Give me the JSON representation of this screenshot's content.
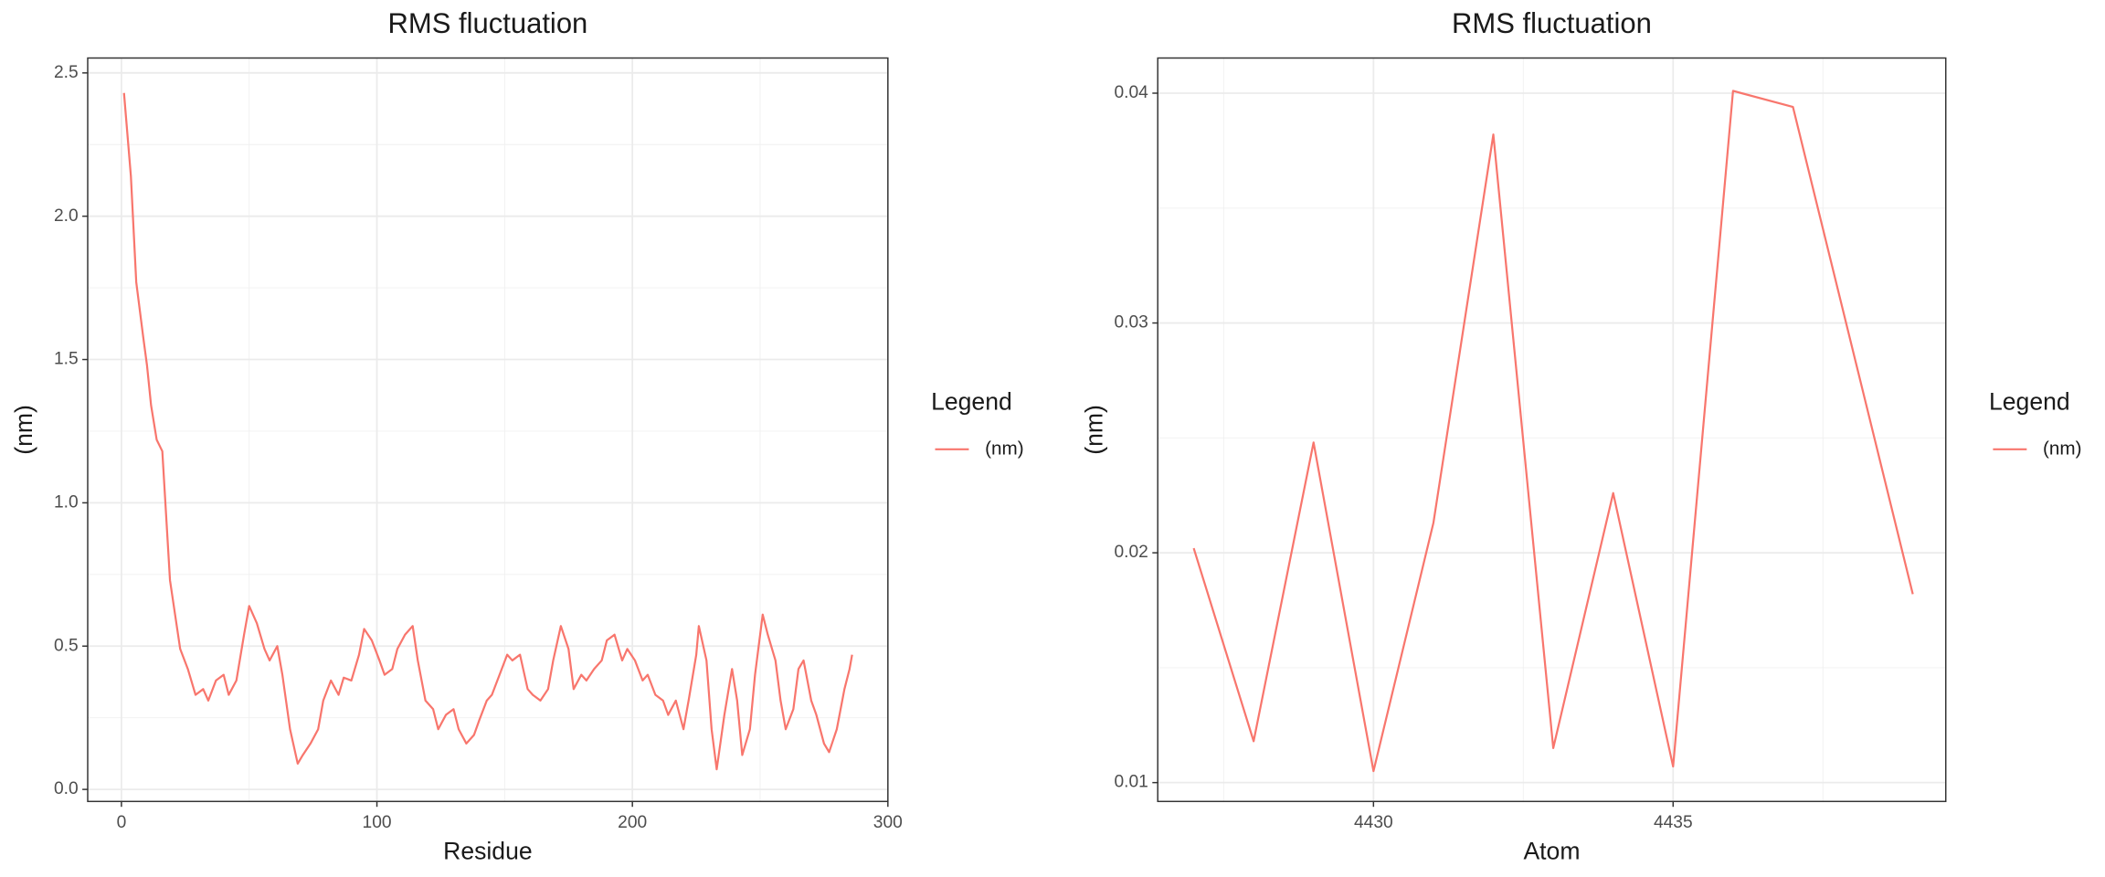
{
  "chart_data": [
    {
      "type": "line",
      "title": "RMS fluctuation",
      "x_label": "Residue",
      "y_label": "(nm)",
      "legend_title": "Legend",
      "legend": "right",
      "grid": true,
      "x": [
        1,
        3.7,
        5.8,
        8.5,
        10,
        11.6,
        13.8,
        16,
        19,
        21,
        23,
        26,
        29,
        32,
        34,
        37,
        40,
        42,
        45,
        48,
        50,
        53,
        56,
        58,
        61,
        63,
        66,
        69,
        71,
        74,
        77,
        79,
        82,
        85,
        87,
        90,
        93,
        95,
        98,
        101,
        103,
        106,
        108,
        111,
        114,
        116,
        119,
        122,
        124,
        127,
        130,
        132,
        135,
        138,
        140,
        143,
        145,
        148,
        151,
        153,
        156,
        159,
        161,
        164,
        167,
        169,
        172,
        175,
        177,
        180,
        182,
        185,
        188,
        190,
        193,
        196,
        198,
        201,
        204,
        206,
        209,
        212,
        214,
        217,
        220,
        222,
        225,
        226,
        229,
        231,
        233,
        236,
        239,
        241,
        243,
        246,
        248,
        251,
        253,
        256,
        258,
        260,
        263,
        265,
        267,
        270,
        272,
        275,
        277,
        280,
        283,
        285,
        286
      ],
      "series": [
        {
          "name": "(nm)",
          "color": "#f8766d",
          "values": [
            2.43,
            2.14,
            1.77,
            1.58,
            1.48,
            1.34,
            1.22,
            1.18,
            0.73,
            0.61,
            0.49,
            0.42,
            0.33,
            0.35,
            0.31,
            0.38,
            0.4,
            0.33,
            0.38,
            0.54,
            0.64,
            0.58,
            0.49,
            0.45,
            0.5,
            0.4,
            0.21,
            0.09,
            0.12,
            0.16,
            0.21,
            0.31,
            0.38,
            0.33,
            0.39,
            0.38,
            0.47,
            0.56,
            0.52,
            0.45,
            0.4,
            0.42,
            0.49,
            0.54,
            0.57,
            0.45,
            0.31,
            0.28,
            0.21,
            0.26,
            0.28,
            0.21,
            0.16,
            0.19,
            0.24,
            0.31,
            0.33,
            0.4,
            0.47,
            0.45,
            0.47,
            0.35,
            0.33,
            0.31,
            0.35,
            0.45,
            0.57,
            0.49,
            0.35,
            0.4,
            0.38,
            0.42,
            0.45,
            0.52,
            0.54,
            0.45,
            0.49,
            0.45,
            0.38,
            0.4,
            0.33,
            0.31,
            0.26,
            0.31,
            0.21,
            0.31,
            0.47,
            0.57,
            0.45,
            0.21,
            0.07,
            0.26,
            0.42,
            0.31,
            0.12,
            0.21,
            0.4,
            0.61,
            0.54,
            0.45,
            0.31,
            0.21,
            0.28,
            0.42,
            0.45,
            0.31,
            0.26,
            0.16,
            0.13,
            0.21,
            0.35,
            0.42,
            0.47
          ]
        }
      ],
      "xlim": [
        -13.2,
        300
      ],
      "xticks": [
        0,
        100,
        200,
        300
      ],
      "ylim": [
        -0.042,
        2.552
      ],
      "yticks": [
        {
          "value": 0,
          "label": "0.0"
        },
        0.5,
        {
          "value": 1,
          "label": "1.0"
        },
        1.5,
        {
          "value": 2,
          "label": "2.0"
        },
        2.5
      ]
    },
    {
      "type": "line",
      "title": "RMS fluctuation",
      "x_label": "Atom",
      "y_label": "(nm)",
      "legend_title": "Legend",
      "legend": "right",
      "grid": true,
      "x": [
        4427,
        4428,
        4429,
        4430,
        4431,
        4432,
        4433,
        4434,
        4435,
        4436,
        4437,
        4439
      ],
      "series": [
        {
          "name": "(nm)",
          "color": "#f8766d",
          "values": [
            0.0202,
            0.0118,
            0.0248,
            0.0105,
            0.0213,
            0.0382,
            0.0115,
            0.0226,
            0.0107,
            0.0401,
            0.0394,
            0.0182
          ]
        }
      ],
      "xlim": [
        4426.4,
        4439.55
      ],
      "xticks": [
        4430,
        4435
      ],
      "ylim": [
        0.00918,
        0.04153
      ],
      "yticks": [
        0.01,
        0.02,
        0.03,
        0.04
      ]
    }
  ]
}
